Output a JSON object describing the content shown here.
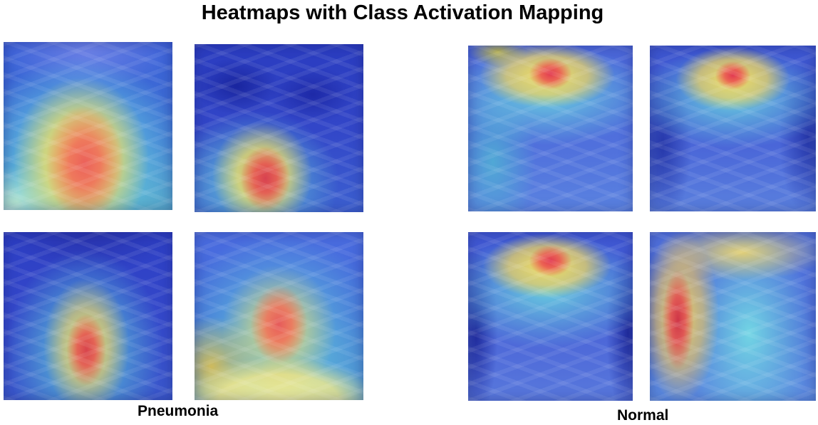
{
  "figure": {
    "title": "Heatmaps with Class Activation Mapping"
  },
  "groups": [
    {
      "label": "Pneumonia"
    },
    {
      "label": "Normal"
    }
  ]
}
